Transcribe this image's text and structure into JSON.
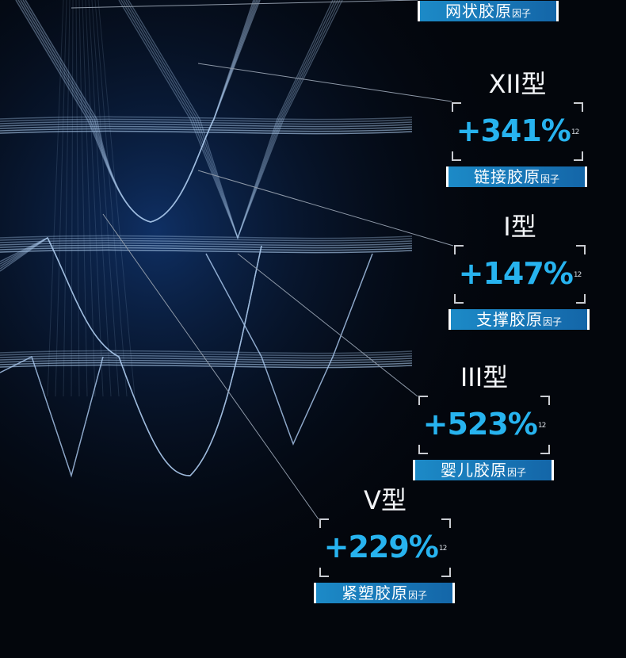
{
  "superscript": "12",
  "items": [
    {
      "title": "",
      "value": "",
      "label": "网状胶原",
      "label_suffix": "因子"
    },
    {
      "title": "XII型",
      "value": "+341%",
      "label": "链接胶原",
      "label_suffix": "因子"
    },
    {
      "title": "I型",
      "value": "+147%",
      "label": "支撑胶原",
      "label_suffix": "因子"
    },
    {
      "title": "III型",
      "value": "+523%",
      "label": "婴儿胶原",
      "label_suffix": "因子"
    },
    {
      "title": "V型",
      "value": "+229%",
      "label": "紧塑胶原",
      "label_suffix": "因子"
    }
  ],
  "colors": {
    "background": "#03060c",
    "accent": "#27b3ef",
    "label_bg": "#1c8ac7",
    "fiber": "#9fc3e8"
  }
}
